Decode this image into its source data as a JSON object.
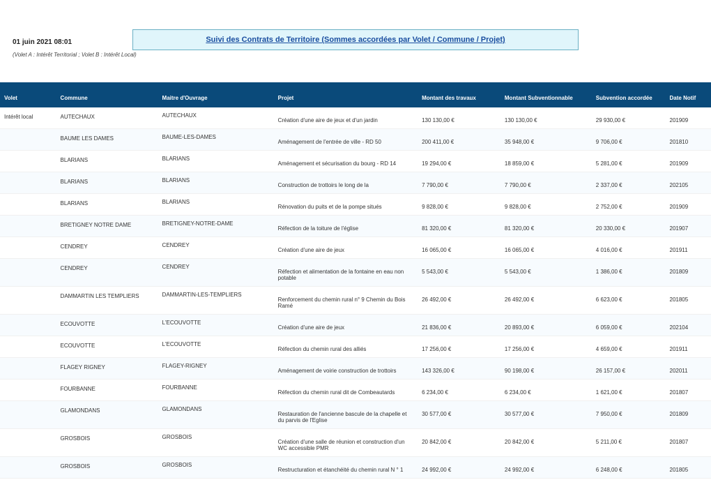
{
  "header": {
    "timestamp": "01 juin 2021  08:01",
    "subtitle": "(Volet A : Intérêt Territorial ;  Volet B : Intérêt Local)",
    "title": "Suivi des Contrats de Territoire (Sommes accordées par Volet / Commune / Projet)"
  },
  "columns": [
    "Volet",
    "Commune",
    "Maitre d'Ouvrage",
    "Projet",
    "Montant des travaux",
    "Montant Subventionnable",
    "Subvention accordée",
    "Date Notif"
  ],
  "volet_label": "Intérêt local",
  "rows": [
    {
      "commune": "AUTECHAUX",
      "mo": "AUTECHAUX",
      "projet": "Création d'une aire de jeux et d'un jardin",
      "montant": "130 130,00 €",
      "subvable": "130 130,00 €",
      "accordee": "29 930,00 €",
      "date": "201909"
    },
    {
      "commune": "BAUME LES DAMES",
      "mo": "BAUME-LES-DAMES",
      "projet": "Aménagement de l'entrée de ville - RD 50",
      "montant": "200 411,00 €",
      "subvable": "35 948,00 €",
      "accordee": "9 706,00 €",
      "date": "201810"
    },
    {
      "commune": "BLARIANS",
      "mo": "BLARIANS",
      "projet": "Aménagement et sécurisation du bourg - RD 14",
      "montant": "19 294,00 €",
      "subvable": "18 859,00 €",
      "accordee": "5 281,00 €",
      "date": "201909"
    },
    {
      "commune": "BLARIANS",
      "mo": "BLARIANS",
      "projet": "Construction de trottoirs le long de la",
      "montant": "7 790,00 €",
      "subvable": "7 790,00 €",
      "accordee": "2 337,00 €",
      "date": "202105"
    },
    {
      "commune": "BLARIANS",
      "mo": "BLARIANS",
      "projet": "Rénovation du puits et de la pompe situés",
      "montant": "9 828,00 €",
      "subvable": "9 828,00 €",
      "accordee": "2 752,00 €",
      "date": "201909"
    },
    {
      "commune": "BRETIGNEY NOTRE DAME",
      "mo": "BRETIGNEY-NOTRE-DAME",
      "projet": "Réfection de la toiture de l'église",
      "montant": "81 320,00 €",
      "subvable": "81 320,00 €",
      "accordee": "20 330,00 €",
      "date": "201907"
    },
    {
      "commune": "CENDREY",
      "mo": "CENDREY",
      "projet": "Création d'une aire de jeux",
      "montant": "16 065,00 €",
      "subvable": "16 065,00 €",
      "accordee": "4 016,00 €",
      "date": "201911"
    },
    {
      "commune": "CENDREY",
      "mo": "CENDREY",
      "projet": "Réfection et alimentation de la fontaine en eau non potable",
      "montant": "5 543,00 €",
      "subvable": "5 543,00 €",
      "accordee": "1 386,00 €",
      "date": "201809"
    },
    {
      "commune": "DAMMARTIN LES TEMPLIERS",
      "mo": "DAMMARTIN-LES-TEMPLIERS",
      "projet": "Renforcement du chemin rural n° 9 Chemin du Bois Ramé",
      "montant": "26 492,00 €",
      "subvable": "26 492,00 €",
      "accordee": "6 623,00 €",
      "date": "201805"
    },
    {
      "commune": "ECOUVOTTE",
      "mo": "L'ECOUVOTTE",
      "projet": "Création d'une aire de jeux",
      "montant": "21 836,00 €",
      "subvable": "20 893,00 €",
      "accordee": "6 059,00 €",
      "date": "202104"
    },
    {
      "commune": "ECOUVOTTE",
      "mo": "L'ECOUVOTTE",
      "projet": "Réfection du chemin rural des alliés",
      "montant": "17 256,00 €",
      "subvable": "17 256,00 €",
      "accordee": "4 659,00 €",
      "date": "201911"
    },
    {
      "commune": "FLAGEY RIGNEY",
      "mo": "FLAGEY-RIGNEY",
      "projet": "Aménagement de voirie construction de trottoirs",
      "montant": "143 326,00 €",
      "subvable": "90 198,00 €",
      "accordee": "26 157,00 €",
      "date": "202011"
    },
    {
      "commune": "FOURBANNE",
      "mo": "FOURBANNE",
      "projet": "Réfection du chemin rural dit de Combeautards",
      "montant": "6 234,00 €",
      "subvable": "6 234,00 €",
      "accordee": "1 621,00 €",
      "date": "201807"
    },
    {
      "commune": "GLAMONDANS",
      "mo": "GLAMONDANS",
      "projet": "Restauration de l'ancienne bascule de la chapelle et du parvis de l'Eglise",
      "montant": "30 577,00 €",
      "subvable": "30 577,00 €",
      "accordee": "7 950,00 €",
      "date": "201809"
    },
    {
      "commune": "GROSBOIS",
      "mo": "GROSBOIS",
      "projet": "Création d'une salle de réunion et construction d'un WC accessible PMR",
      "montant": "20 842,00 €",
      "subvable": "20 842,00 €",
      "accordee": "5 211,00 €",
      "date": "201807"
    },
    {
      "commune": "GROSBOIS",
      "mo": "GROSBOIS",
      "projet": "Restructuration et étanchéité du chemin rural N ° 1",
      "montant": "24 992,00 €",
      "subvable": "24 992,00 €",
      "accordee": "6 248,00 €",
      "date": "201805"
    }
  ],
  "colors": {
    "header_bg": "#0a4a7a",
    "title_bg": "#e0f5fb",
    "title_border": "#6ab0c4",
    "title_link": "#1a4ea0",
    "row_alt": "#f7fbfe"
  }
}
